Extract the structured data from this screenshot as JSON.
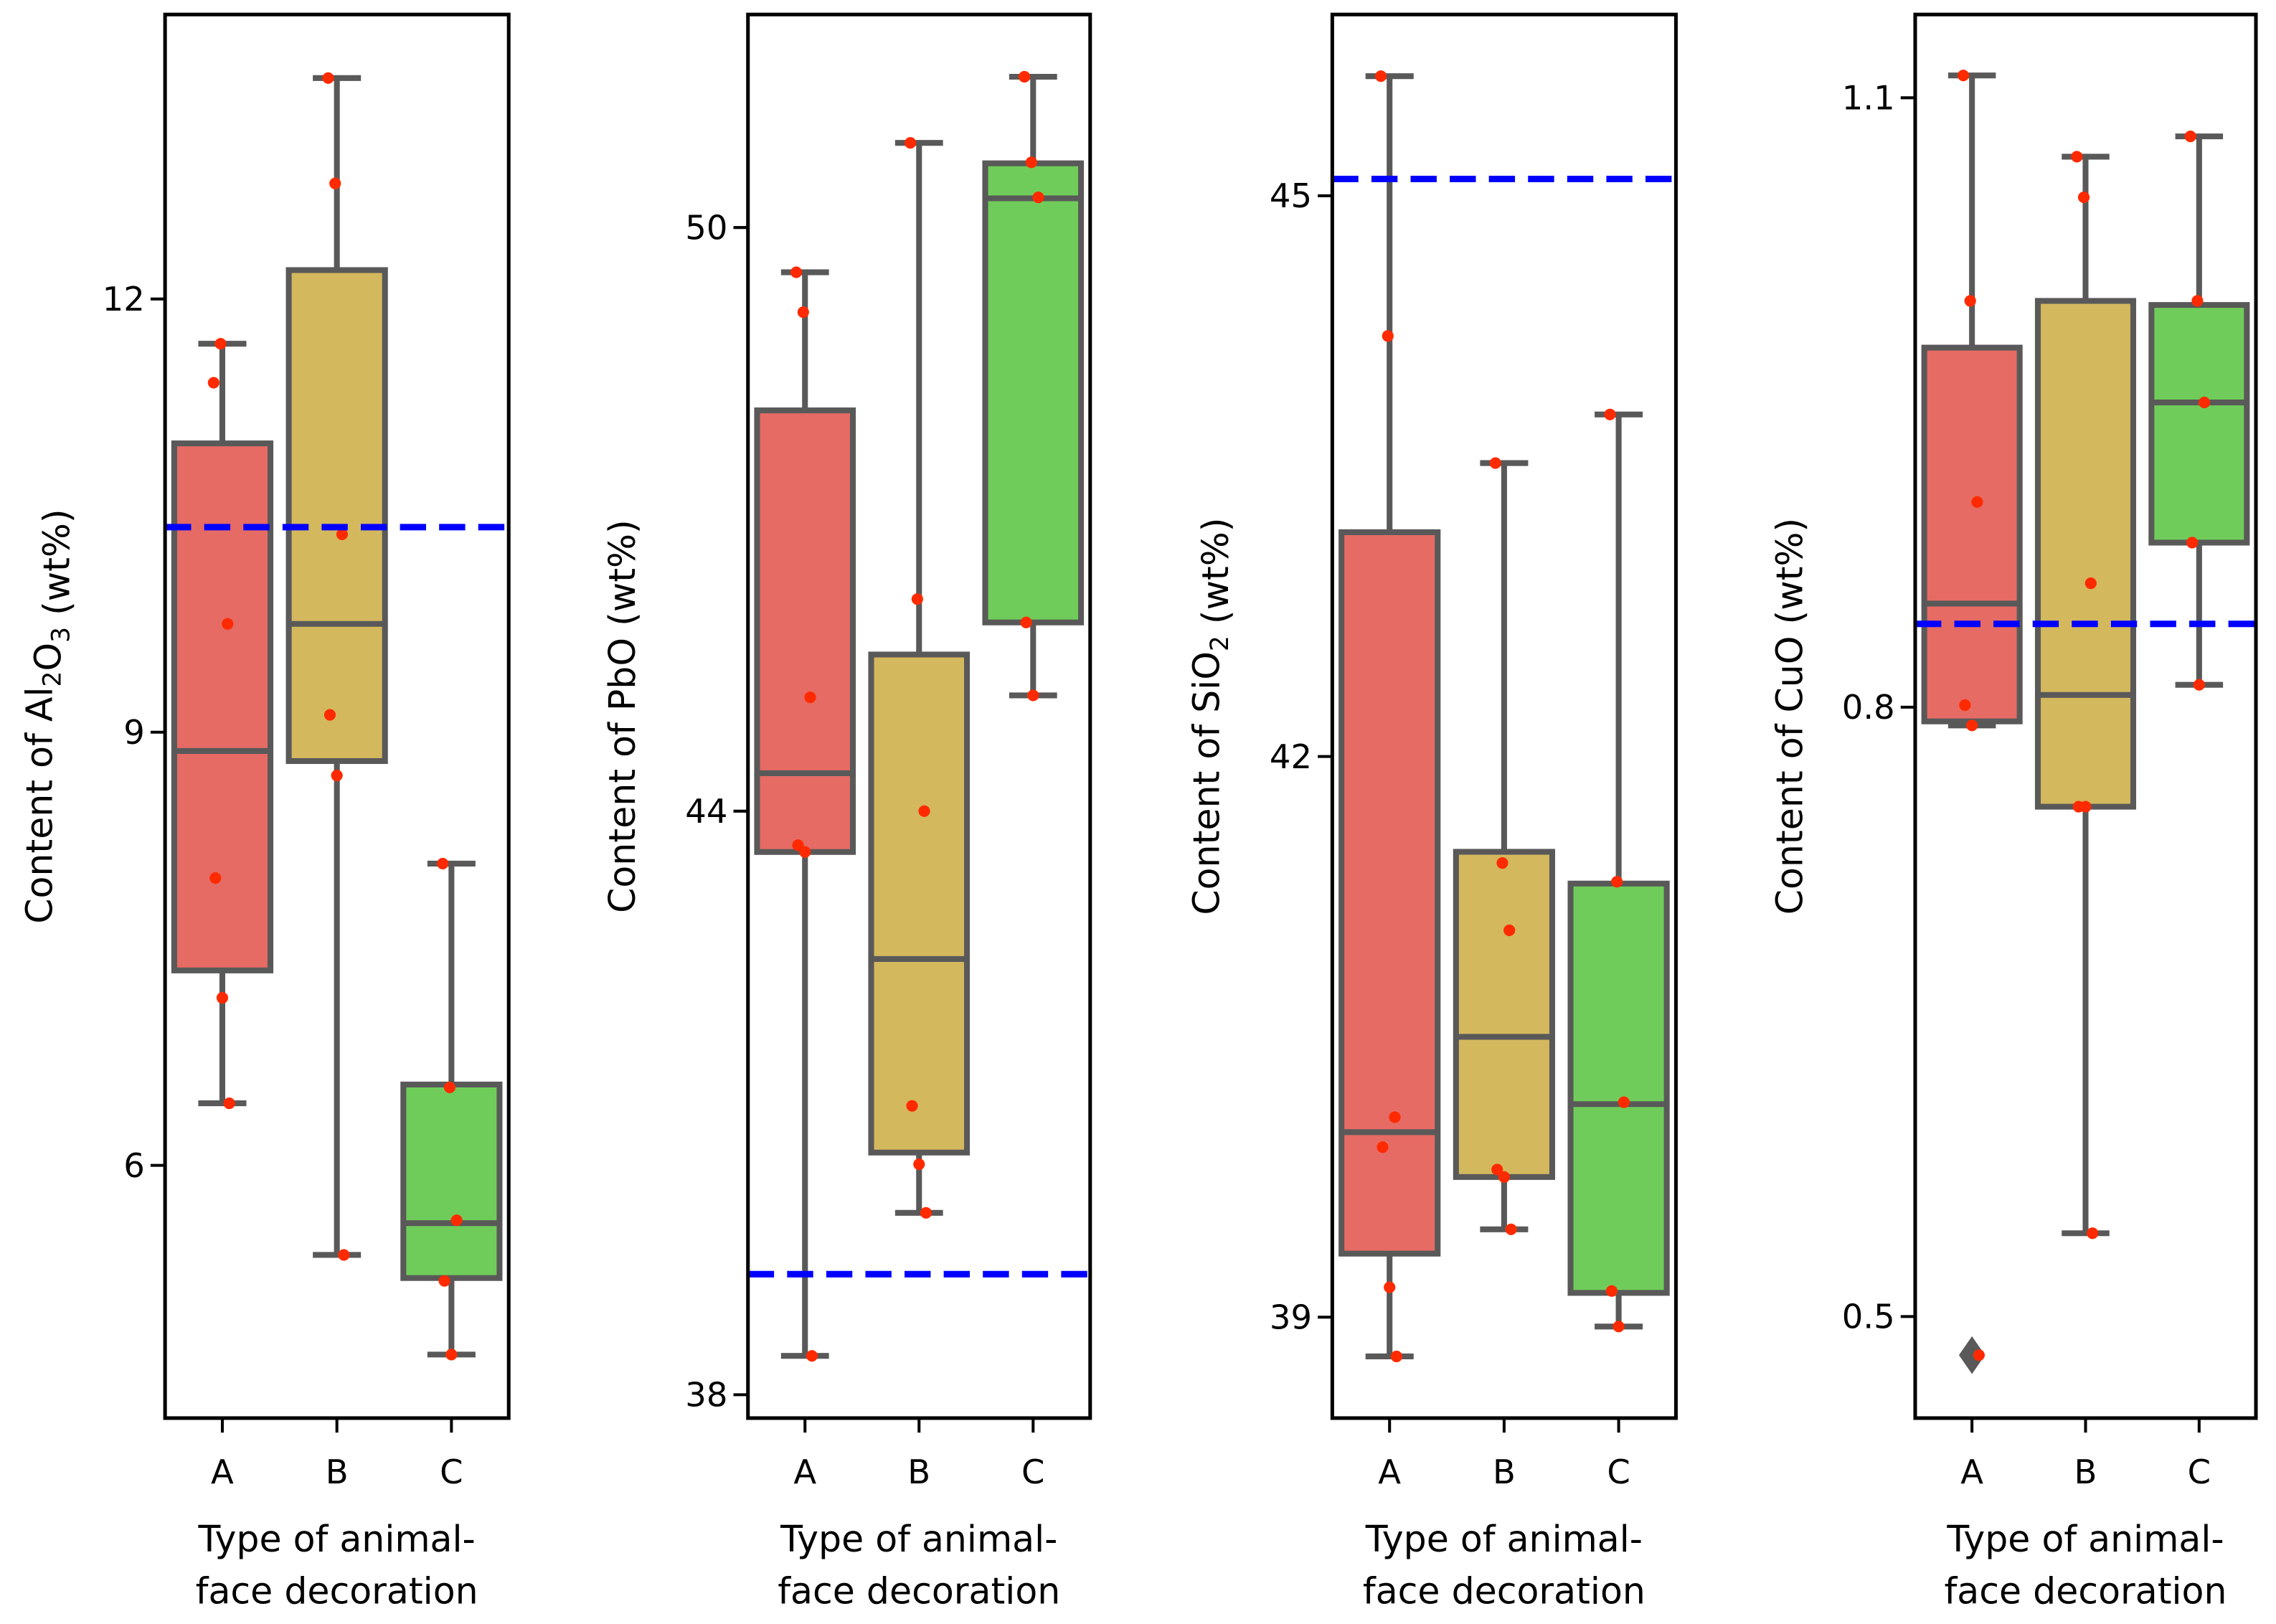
{
  "chart_data": [
    {
      "type": "box",
      "ylabel": "Content of Al2O3 (wt%)",
      "xlabel": [
        "Type of animal-",
        "face decoration"
      ],
      "categories": [
        "A",
        "B",
        "C"
      ],
      "yticks": [
        6,
        9,
        12
      ],
      "ylim": [
        4.25,
        13.97
      ],
      "mean_line": 10.42,
      "boxes": [
        {
          "q1": 7.35,
          "median": 8.87,
          "q3": 11.0,
          "whislo": 6.43,
          "whishi": 11.69,
          "outliers": [],
          "points": [
            11.42,
            11.69,
            9.75,
            7.99,
            7.16,
            6.43
          ]
        },
        {
          "q1": 8.8,
          "median": 9.75,
          "q3": 12.2,
          "whislo": 5.38,
          "whishi": 13.53,
          "outliers": [],
          "points": [
            13.53,
            12.8,
            10.37,
            9.12,
            8.7,
            5.38
          ]
        },
        {
          "q1": 5.22,
          "median": 5.6,
          "q3": 6.56,
          "whislo": 4.69,
          "whishi": 8.09,
          "outliers": [],
          "points": [
            8.09,
            6.54,
            5.62,
            5.2,
            4.69
          ]
        }
      ]
    },
    {
      "type": "box",
      "ylabel": "Content of PbO (wt%)",
      "xlabel": [
        "Type of animal-",
        "face decoration"
      ],
      "categories": [
        "A",
        "B",
        "C"
      ],
      "yticks": [
        38,
        44,
        50
      ],
      "ylim": [
        37.76,
        52.19
      ],
      "mean_line": 39.24,
      "boxes": [
        {
          "q1": 43.58,
          "median": 44.39,
          "q3": 48.12,
          "whislo": 38.4,
          "whishi": 49.54,
          "outliers": [],
          "points": [
            49.54,
            49.13,
            45.17,
            43.65,
            43.58,
            38.4
          ]
        },
        {
          "q1": 40.49,
          "median": 42.48,
          "q3": 45.61,
          "whislo": 39.87,
          "whishi": 50.87,
          "outliers": [],
          "points": [
            50.87,
            46.18,
            44.0,
            40.97,
            40.37,
            39.87
          ]
        },
        {
          "q1": 45.94,
          "median": 50.3,
          "q3": 50.66,
          "whislo": 45.19,
          "whishi": 51.55,
          "outliers": [],
          "points": [
            51.55,
            50.67,
            50.31,
            45.94,
            45.19
          ]
        }
      ]
    },
    {
      "type": "box",
      "ylabel": "Content of SiO2 (wt%)",
      "xlabel": [
        "Type of animal-",
        "face decoration"
      ],
      "categories": [
        "A",
        "B",
        "C"
      ],
      "yticks": [
        39,
        42,
        45
      ],
      "ylim": [
        38.46,
        45.97
      ],
      "mean_line": 45.09,
      "boxes": [
        {
          "q1": 39.34,
          "median": 39.99,
          "q3": 43.2,
          "whislo": 38.79,
          "whishi": 45.64,
          "outliers": [],
          "points": [
            45.64,
            44.25,
            40.07,
            39.91,
            39.16,
            38.79
          ]
        },
        {
          "q1": 39.75,
          "median": 40.5,
          "q3": 41.49,
          "whislo": 39.47,
          "whishi": 43.57,
          "outliers": [],
          "points": [
            43.57,
            41.43,
            41.07,
            39.79,
            39.75,
            39.47
          ]
        },
        {
          "q1": 39.13,
          "median": 40.14,
          "q3": 41.32,
          "whislo": 38.95,
          "whishi": 43.83,
          "outliers": [],
          "points": [
            43.83,
            41.33,
            40.15,
            39.14,
            38.95
          ]
        }
      ]
    },
    {
      "type": "box",
      "ylabel": "Content of CuO (wt%)",
      "xlabel": [
        "Type of animal-",
        "face decoration"
      ],
      "categories": [
        "A",
        "B",
        "C"
      ],
      "yticks": [
        0.5,
        0.8,
        1.1
      ],
      "ylim": [
        0.45,
        1.141
      ],
      "mean_line": 0.841,
      "boxes": [
        {
          "q1": 0.793,
          "median": 0.851,
          "q3": 0.977,
          "whislo": 0.791,
          "whishi": 1.111,
          "outliers": [
            0.481
          ],
          "points": [
            1.111,
            1.0,
            0.901,
            0.801,
            0.791,
            0.481
          ]
        },
        {
          "q1": 0.751,
          "median": 0.806,
          "q3": 1.0,
          "whislo": 0.541,
          "whishi": 1.071,
          "outliers": [],
          "points": [
            1.071,
            1.051,
            0.861,
            0.751,
            0.751,
            0.541
          ]
        },
        {
          "q1": 0.881,
          "median": 0.95,
          "q3": 0.998,
          "whislo": 0.811,
          "whishi": 1.081,
          "outliers": [],
          "points": [
            1.081,
            1.0,
            0.95,
            0.881,
            0.811
          ]
        }
      ]
    }
  ],
  "colors": {
    "box_fills": [
      "#e66b64",
      "#d4b85e",
      "#70cc5a"
    ],
    "edge": "#595959",
    "points": "#ff2a00",
    "mean_line": "#0000ff"
  }
}
